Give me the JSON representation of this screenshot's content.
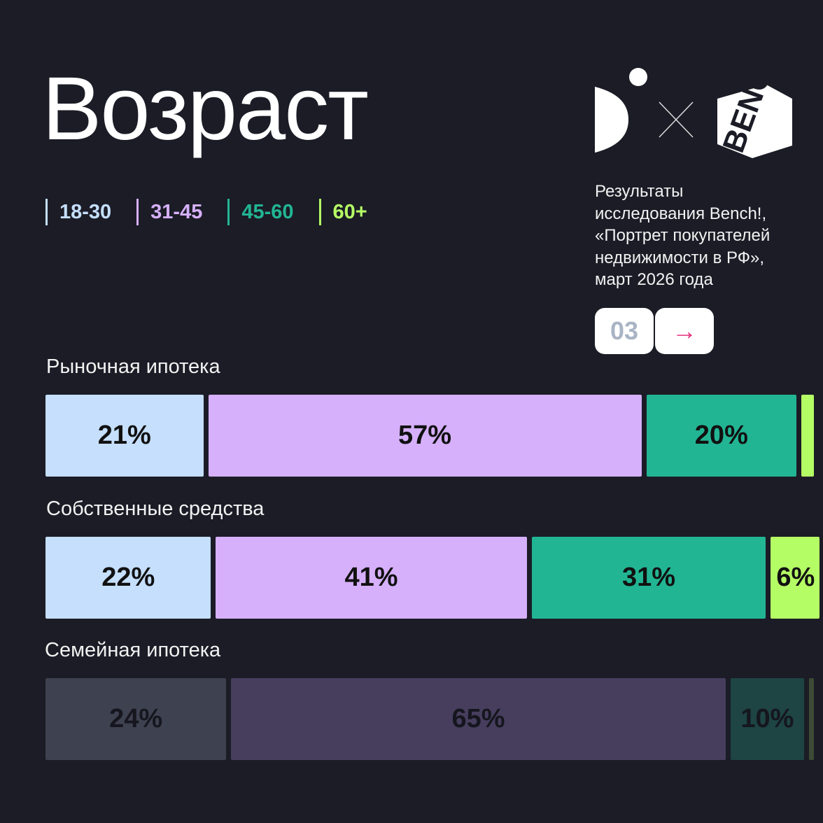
{
  "title": "Возраст",
  "legend": [
    {
      "label": "18-30",
      "color": "#c5dffd"
    },
    {
      "label": "31-45",
      "color": "#d6b0fb"
    },
    {
      "label": "45-60",
      "color": "#22b594"
    },
    {
      "label": "60+",
      "color": "#b5fd65"
    }
  ],
  "logos": {
    "separator": "×",
    "partner": "BENCH"
  },
  "description": [
    "Результаты",
    "исследования Bench!,",
    "«Портрет покупателей",
    "недвижимости в РФ»,",
    "март 2026 года"
  ],
  "pager": {
    "page": "03",
    "next_icon": "arrow-right-icon",
    "next": "→"
  },
  "chart_data": {
    "type": "bar",
    "stacked": true,
    "orientation": "horizontal",
    "title": "Возраст",
    "legend_position": "top-left",
    "series_names": [
      "18-30",
      "31-45",
      "45-60",
      "60+"
    ],
    "categories": [
      "Рыночная ипотека",
      "Собственные средства",
      "Семейная ипотека"
    ],
    "rows": [
      {
        "label": "Рыночная ипотека",
        "values": [
          21,
          57,
          20,
          2
        ],
        "labels": [
          "21%",
          "57%",
          "20%",
          ""
        ],
        "colors": [
          "#c5dffd",
          "#d6b0fb",
          "#22b594",
          "#b5fd65"
        ]
      },
      {
        "label": "Собственные средства",
        "values": [
          22,
          41,
          31,
          6
        ],
        "labels": [
          "22%",
          "41%",
          "31%",
          "6%"
        ],
        "colors": [
          "#c5dffd",
          "#d6b0fb",
          "#22b594",
          "#b5fd65"
        ]
      },
      {
        "label": "Семейная ипотека",
        "values": [
          24,
          65,
          10,
          1
        ],
        "labels": [
          "24%",
          "65%",
          "10%",
          ""
        ],
        "colors": [
          "#3e4150",
          "#473e5e",
          "#1e4444",
          "#3d4a35"
        ]
      }
    ]
  }
}
